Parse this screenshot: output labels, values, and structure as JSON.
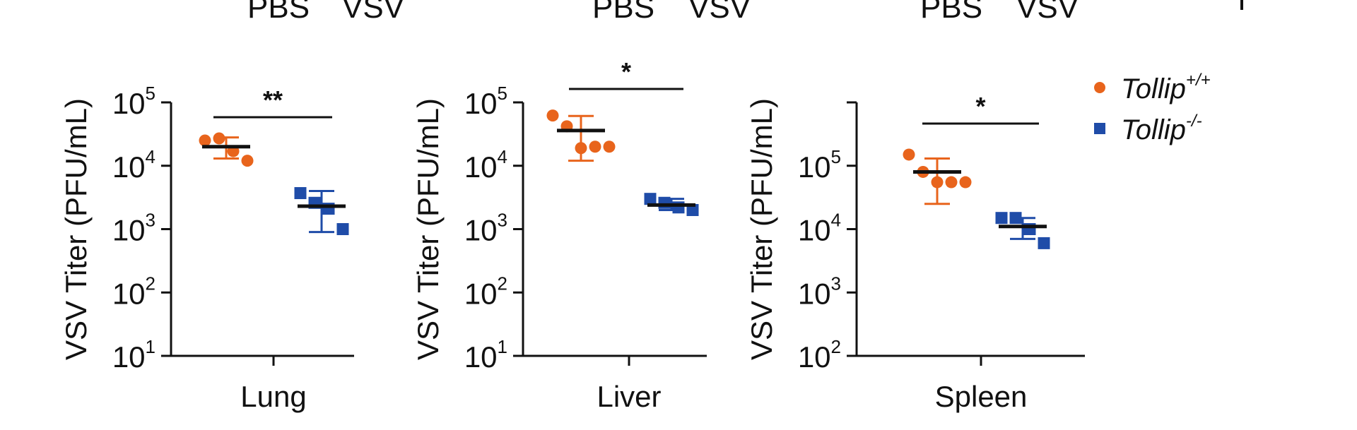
{
  "header_labels": {
    "lung": [
      "PBS",
      "VSV"
    ],
    "liver": [
      "PBS",
      "VSV"
    ],
    "spleen": [
      "PBS",
      "VSV"
    ]
  },
  "legend": [
    {
      "prefix": "Tollip",
      "sup": "+/+",
      "color": "#E8641C",
      "marker": "circle"
    },
    {
      "prefix": "Tollip",
      "sup": "-/-",
      "color": "#1F4CA8",
      "marker": "square"
    }
  ],
  "colors": {
    "wt": "#E8641C",
    "ko": "#1F4CA8",
    "axis": "#111111",
    "mean": "#111111"
  },
  "chart_data": [
    {
      "type": "scatter",
      "scale": "log10",
      "ylabel": "VSV Titer (PFU/mL)",
      "xlabel": "Lung",
      "ylim_exp": [
        1,
        5
      ],
      "ytick_exps": [
        1,
        2,
        3,
        4,
        5
      ],
      "significance": "**",
      "groups": [
        {
          "name": "Tollip+/+",
          "color": "#E8641C",
          "marker": "circle",
          "points": [
            25000,
            27000,
            17000,
            12000
          ],
          "mean": 20000,
          "err_low": 13000,
          "err_high": 28000
        },
        {
          "name": "Tollip-/-",
          "color": "#1F4CA8",
          "marker": "square",
          "points": [
            3700,
            2600,
            2100,
            1000
          ],
          "mean": 2300,
          "err_low": 900,
          "err_high": 4000
        }
      ]
    },
    {
      "type": "scatter",
      "scale": "log10",
      "ylabel": "VSV Titer (PFU/mL)",
      "xlabel": "Liver",
      "ylim_exp": [
        1,
        5
      ],
      "ytick_exps": [
        1,
        2,
        3,
        4,
        5
      ],
      "significance": "*",
      "groups": [
        {
          "name": "Tollip+/+",
          "color": "#E8641C",
          "marker": "circle",
          "points": [
            62000,
            42000,
            19000,
            20000,
            20000
          ],
          "mean": 36000,
          "err_low": 12000,
          "err_high": 61000
        },
        {
          "name": "Tollip-/-",
          "color": "#1F4CA8",
          "marker": "square",
          "points": [
            3000,
            2600,
            2200,
            2000
          ],
          "mean": 2400,
          "err_low": 2000,
          "err_high": 3000
        }
      ]
    },
    {
      "type": "scatter",
      "scale": "log10",
      "ylabel": "VSV Titer (PFU/mL)",
      "xlabel": "Spleen",
      "ylim_exp": [
        2,
        6
      ],
      "ytick_exps": [
        2,
        3,
        4,
        5
      ],
      "significance": "*",
      "groups": [
        {
          "name": "Tollip+/+",
          "color": "#E8641C",
          "marker": "circle",
          "points": [
            150000,
            80000,
            55000,
            55000,
            55000
          ],
          "mean": 80000,
          "err_low": 25000,
          "err_high": 130000
        },
        {
          "name": "Tollip-/-",
          "color": "#1F4CA8",
          "marker": "square",
          "points": [
            15000,
            15000,
            10000,
            6000
          ],
          "mean": 11000,
          "err_low": 7000,
          "err_high": 15000
        }
      ]
    }
  ]
}
